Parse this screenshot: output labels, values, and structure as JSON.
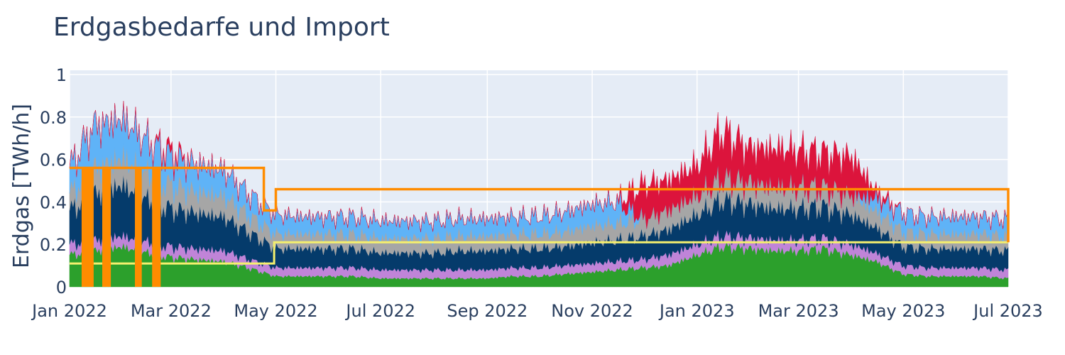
{
  "chart_data": {
    "type": "area",
    "title": "Erdgasbedarfe und Import",
    "xlabel": "",
    "ylabel": "Erdgas [TWh/h]",
    "xlim": [
      "2022-01-01",
      "2023-07-01"
    ],
    "ylim": [
      0,
      1.02
    ],
    "grid": true,
    "legend": "none",
    "x_ticks": [
      "Jan 2022",
      "Mar 2022",
      "May 2022",
      "Jul 2022",
      "Sep 2022",
      "Nov 2022",
      "Jan 2023",
      "Mar 2023",
      "May 2023",
      "Jul 2023"
    ],
    "y_ticks": [
      "0",
      "0.2",
      "0.4",
      "0.6",
      "0.8",
      "1"
    ],
    "colors": {
      "plot_bg": "#e5ecf6",
      "grid": "#ffffff",
      "green": "#2ca02c",
      "purple": "#c084d8",
      "navy": "#053b6b",
      "gray": "#a6a6a6",
      "lightblue": "#5fb3f7",
      "red": "#dc143c",
      "orange": "#ff8c00",
      "yellow": "#f5f06e"
    },
    "x": [
      "2022-01-01",
      "2022-01-15",
      "2022-02-01",
      "2022-02-15",
      "2022-03-01",
      "2022-03-15",
      "2022-04-01",
      "2022-04-15",
      "2022-05-01",
      "2022-05-15",
      "2022-06-01",
      "2022-06-15",
      "2022-07-01",
      "2022-07-15",
      "2022-08-01",
      "2022-08-15",
      "2022-09-01",
      "2022-09-15",
      "2022-10-01",
      "2022-10-15",
      "2022-11-01",
      "2022-11-15",
      "2022-12-01",
      "2022-12-15",
      "2023-01-01",
      "2023-01-15",
      "2023-02-01",
      "2023-02-15",
      "2023-03-01",
      "2023-03-15",
      "2023-04-01",
      "2023-04-15",
      "2023-05-01",
      "2023-05-15",
      "2023-06-01",
      "2023-06-15",
      "2023-07-01"
    ],
    "series": [
      {
        "color": "#2ca02c",
        "values": [
          0.15,
          0.17,
          0.19,
          0.16,
          0.14,
          0.13,
          0.12,
          0.09,
          0.05,
          0.05,
          0.05,
          0.05,
          0.04,
          0.04,
          0.04,
          0.04,
          0.04,
          0.05,
          0.05,
          0.06,
          0.07,
          0.08,
          0.09,
          0.1,
          0.15,
          0.19,
          0.18,
          0.17,
          0.17,
          0.18,
          0.15,
          0.12,
          0.06,
          0.05,
          0.05,
          0.05,
          0.04
        ]
      },
      {
        "color": "#c084d8",
        "values": [
          0.05,
          0.05,
          0.05,
          0.05,
          0.05,
          0.05,
          0.05,
          0.04,
          0.04,
          0.04,
          0.04,
          0.04,
          0.04,
          0.04,
          0.04,
          0.04,
          0.04,
          0.04,
          0.04,
          0.04,
          0.04,
          0.04,
          0.04,
          0.05,
          0.05,
          0.05,
          0.05,
          0.05,
          0.05,
          0.05,
          0.05,
          0.04,
          0.04,
          0.04,
          0.04,
          0.04,
          0.04
        ]
      },
      {
        "color": "#053b6b",
        "values": [
          0.16,
          0.22,
          0.24,
          0.2,
          0.18,
          0.17,
          0.16,
          0.13,
          0.09,
          0.09,
          0.09,
          0.09,
          0.08,
          0.08,
          0.08,
          0.09,
          0.09,
          0.09,
          0.09,
          0.09,
          0.1,
          0.1,
          0.11,
          0.12,
          0.14,
          0.17,
          0.16,
          0.15,
          0.15,
          0.15,
          0.14,
          0.12,
          0.09,
          0.09,
          0.09,
          0.09,
          0.09
        ]
      },
      {
        "color": "#a6a6a6",
        "values": [
          0.08,
          0.12,
          0.13,
          0.12,
          0.11,
          0.1,
          0.1,
          0.08,
          0.07,
          0.07,
          0.07,
          0.07,
          0.07,
          0.07,
          0.07,
          0.07,
          0.07,
          0.07,
          0.07,
          0.07,
          0.08,
          0.08,
          0.08,
          0.09,
          0.09,
          0.1,
          0.1,
          0.1,
          0.1,
          0.09,
          0.09,
          0.08,
          0.07,
          0.07,
          0.07,
          0.07,
          0.07
        ]
      },
      {
        "color": "#5fb3f7",
        "values": [
          0.12,
          0.2,
          0.18,
          0.16,
          0.13,
          0.13,
          0.12,
          0.1,
          0.09,
          0.08,
          0.08,
          0.08,
          0.08,
          0.08,
          0.08,
          0.08,
          0.08,
          0.08,
          0.08,
          0.09,
          0.1,
          0.1,
          0.0,
          0.0,
          0.0,
          0.0,
          0.0,
          0.0,
          0.0,
          0.0,
          0.0,
          0.06,
          0.09,
          0.08,
          0.08,
          0.08,
          0.08
        ]
      },
      {
        "color": "#dc143c",
        "values": [
          0.0,
          0.0,
          0.0,
          0.0,
          0.03,
          0.0,
          0.0,
          0.0,
          0.0,
          0.0,
          0.0,
          0.0,
          0.0,
          0.0,
          0.0,
          0.0,
          0.0,
          0.0,
          0.0,
          0.0,
          0.0,
          0.0,
          0.16,
          0.14,
          0.14,
          0.22,
          0.16,
          0.18,
          0.17,
          0.16,
          0.18,
          0.03,
          0.0,
          0.0,
          0.0,
          0.0,
          0.0
        ]
      }
    ],
    "import_orange": {
      "color": "#ff8c00",
      "x": [
        "2022-01-01",
        "2022-04-24",
        "2022-04-24",
        "2022-05-01",
        "2022-05-01",
        "2023-07-01",
        "2023-07-01"
      ],
      "values": [
        0.56,
        0.56,
        0.36,
        0.36,
        0.46,
        0.46,
        0.21
      ]
    },
    "import_orange_dips": [
      {
        "from": "2022-01-08",
        "to": "2022-01-15",
        "level": 0.56
      },
      {
        "from": "2022-01-20",
        "to": "2022-01-25",
        "level": 0.56
      },
      {
        "from": "2022-02-08",
        "to": "2022-02-12",
        "level": 0.56
      },
      {
        "from": "2022-02-18",
        "to": "2022-02-23",
        "level": 0.56
      }
    ],
    "import_yellow": {
      "color": "#f5f06e",
      "x": [
        "2022-01-01",
        "2022-04-30",
        "2022-04-30",
        "2023-07-01"
      ],
      "values": [
        0.11,
        0.11,
        0.21,
        0.21
      ]
    }
  }
}
